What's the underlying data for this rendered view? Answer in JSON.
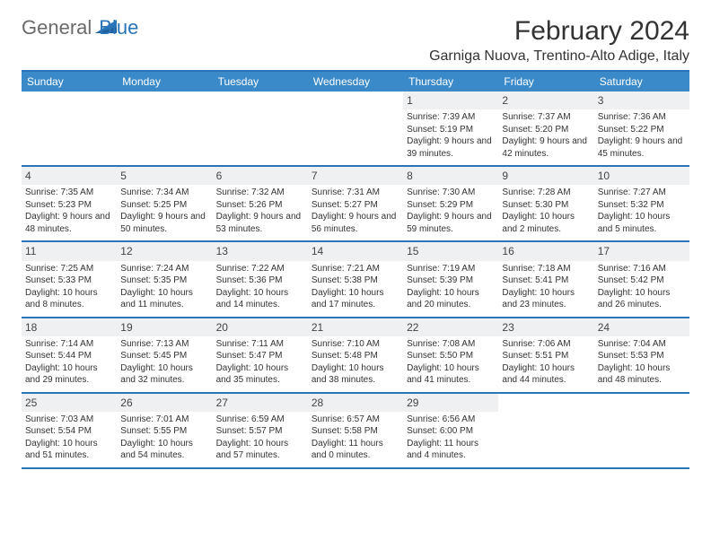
{
  "brand": {
    "general": "General",
    "blue": "Blue"
  },
  "title": "February 2024",
  "location": "Garniga Nuova, Trentino-Alto Adige, Italy",
  "colors": {
    "header_bg": "#3a8ac9",
    "border": "#2a74b8",
    "daynum_bg": "#eef0f2",
    "text": "#333333",
    "logo_gray": "#6a6a6a",
    "logo_blue": "#2a74b8"
  },
  "fonts": {
    "title_size": 30,
    "location_size": 16,
    "dayhead_size": 12,
    "daynum_size": 12,
    "body_size": 10
  },
  "day_headers": [
    "Sunday",
    "Monday",
    "Tuesday",
    "Wednesday",
    "Thursday",
    "Friday",
    "Saturday"
  ],
  "weeks": [
    [
      {
        "n": "",
        "sr": "",
        "ss": "",
        "dl": ""
      },
      {
        "n": "",
        "sr": "",
        "ss": "",
        "dl": ""
      },
      {
        "n": "",
        "sr": "",
        "ss": "",
        "dl": ""
      },
      {
        "n": "",
        "sr": "",
        "ss": "",
        "dl": ""
      },
      {
        "n": "1",
        "sr": "Sunrise: 7:39 AM",
        "ss": "Sunset: 5:19 PM",
        "dl": "Daylight: 9 hours and 39 minutes."
      },
      {
        "n": "2",
        "sr": "Sunrise: 7:37 AM",
        "ss": "Sunset: 5:20 PM",
        "dl": "Daylight: 9 hours and 42 minutes."
      },
      {
        "n": "3",
        "sr": "Sunrise: 7:36 AM",
        "ss": "Sunset: 5:22 PM",
        "dl": "Daylight: 9 hours and 45 minutes."
      }
    ],
    [
      {
        "n": "4",
        "sr": "Sunrise: 7:35 AM",
        "ss": "Sunset: 5:23 PM",
        "dl": "Daylight: 9 hours and 48 minutes."
      },
      {
        "n": "5",
        "sr": "Sunrise: 7:34 AM",
        "ss": "Sunset: 5:25 PM",
        "dl": "Daylight: 9 hours and 50 minutes."
      },
      {
        "n": "6",
        "sr": "Sunrise: 7:32 AM",
        "ss": "Sunset: 5:26 PM",
        "dl": "Daylight: 9 hours and 53 minutes."
      },
      {
        "n": "7",
        "sr": "Sunrise: 7:31 AM",
        "ss": "Sunset: 5:27 PM",
        "dl": "Daylight: 9 hours and 56 minutes."
      },
      {
        "n": "8",
        "sr": "Sunrise: 7:30 AM",
        "ss": "Sunset: 5:29 PM",
        "dl": "Daylight: 9 hours and 59 minutes."
      },
      {
        "n": "9",
        "sr": "Sunrise: 7:28 AM",
        "ss": "Sunset: 5:30 PM",
        "dl": "Daylight: 10 hours and 2 minutes."
      },
      {
        "n": "10",
        "sr": "Sunrise: 7:27 AM",
        "ss": "Sunset: 5:32 PM",
        "dl": "Daylight: 10 hours and 5 minutes."
      }
    ],
    [
      {
        "n": "11",
        "sr": "Sunrise: 7:25 AM",
        "ss": "Sunset: 5:33 PM",
        "dl": "Daylight: 10 hours and 8 minutes."
      },
      {
        "n": "12",
        "sr": "Sunrise: 7:24 AM",
        "ss": "Sunset: 5:35 PM",
        "dl": "Daylight: 10 hours and 11 minutes."
      },
      {
        "n": "13",
        "sr": "Sunrise: 7:22 AM",
        "ss": "Sunset: 5:36 PM",
        "dl": "Daylight: 10 hours and 14 minutes."
      },
      {
        "n": "14",
        "sr": "Sunrise: 7:21 AM",
        "ss": "Sunset: 5:38 PM",
        "dl": "Daylight: 10 hours and 17 minutes."
      },
      {
        "n": "15",
        "sr": "Sunrise: 7:19 AM",
        "ss": "Sunset: 5:39 PM",
        "dl": "Daylight: 10 hours and 20 minutes."
      },
      {
        "n": "16",
        "sr": "Sunrise: 7:18 AM",
        "ss": "Sunset: 5:41 PM",
        "dl": "Daylight: 10 hours and 23 minutes."
      },
      {
        "n": "17",
        "sr": "Sunrise: 7:16 AM",
        "ss": "Sunset: 5:42 PM",
        "dl": "Daylight: 10 hours and 26 minutes."
      }
    ],
    [
      {
        "n": "18",
        "sr": "Sunrise: 7:14 AM",
        "ss": "Sunset: 5:44 PM",
        "dl": "Daylight: 10 hours and 29 minutes."
      },
      {
        "n": "19",
        "sr": "Sunrise: 7:13 AM",
        "ss": "Sunset: 5:45 PM",
        "dl": "Daylight: 10 hours and 32 minutes."
      },
      {
        "n": "20",
        "sr": "Sunrise: 7:11 AM",
        "ss": "Sunset: 5:47 PM",
        "dl": "Daylight: 10 hours and 35 minutes."
      },
      {
        "n": "21",
        "sr": "Sunrise: 7:10 AM",
        "ss": "Sunset: 5:48 PM",
        "dl": "Daylight: 10 hours and 38 minutes."
      },
      {
        "n": "22",
        "sr": "Sunrise: 7:08 AM",
        "ss": "Sunset: 5:50 PM",
        "dl": "Daylight: 10 hours and 41 minutes."
      },
      {
        "n": "23",
        "sr": "Sunrise: 7:06 AM",
        "ss": "Sunset: 5:51 PM",
        "dl": "Daylight: 10 hours and 44 minutes."
      },
      {
        "n": "24",
        "sr": "Sunrise: 7:04 AM",
        "ss": "Sunset: 5:53 PM",
        "dl": "Daylight: 10 hours and 48 minutes."
      }
    ],
    [
      {
        "n": "25",
        "sr": "Sunrise: 7:03 AM",
        "ss": "Sunset: 5:54 PM",
        "dl": "Daylight: 10 hours and 51 minutes."
      },
      {
        "n": "26",
        "sr": "Sunrise: 7:01 AM",
        "ss": "Sunset: 5:55 PM",
        "dl": "Daylight: 10 hours and 54 minutes."
      },
      {
        "n": "27",
        "sr": "Sunrise: 6:59 AM",
        "ss": "Sunset: 5:57 PM",
        "dl": "Daylight: 10 hours and 57 minutes."
      },
      {
        "n": "28",
        "sr": "Sunrise: 6:57 AM",
        "ss": "Sunset: 5:58 PM",
        "dl": "Daylight: 11 hours and 0 minutes."
      },
      {
        "n": "29",
        "sr": "Sunrise: 6:56 AM",
        "ss": "Sunset: 6:00 PM",
        "dl": "Daylight: 11 hours and 4 minutes."
      },
      {
        "n": "",
        "sr": "",
        "ss": "",
        "dl": ""
      },
      {
        "n": "",
        "sr": "",
        "ss": "",
        "dl": ""
      }
    ]
  ]
}
